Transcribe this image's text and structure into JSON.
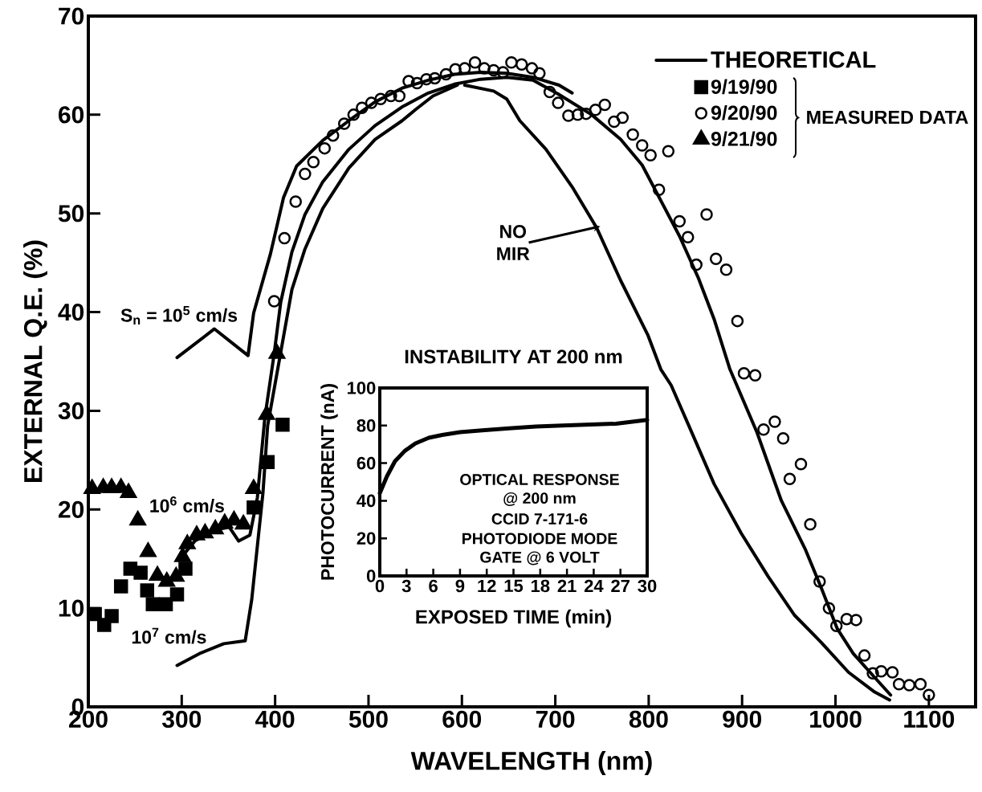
{
  "chart_data": [
    {
      "type": "line",
      "xlabel": "WAVELENGTH (nm)",
      "ylabel": "EXTERNAL Q.E. (%)",
      "xlim": [
        200,
        1150
      ],
      "ylim": [
        0,
        70
      ],
      "xticks": [
        200,
        300,
        400,
        500,
        600,
        700,
        800,
        900,
        1000,
        1100
      ],
      "yticks": [
        0,
        10,
        20,
        30,
        40,
        50,
        60,
        70
      ],
      "legend": "top right",
      "series": [
        {
          "name": "THEORETICAL",
          "type": "line",
          "color": "#000000",
          "x": [
            295,
            335,
            371,
            377,
            395,
            409,
            423,
            451,
            479,
            507,
            536,
            564,
            592,
            620,
            648,
            676,
            704,
            718
          ],
          "values": [
            35.4,
            38.3,
            35.6,
            39.9,
            45.9,
            51.6,
            54.8,
            57.4,
            59.4,
            61.3,
            62.7,
            63.5,
            64.1,
            64.3,
            64.2,
            63.8,
            63.0,
            62.2
          ]
        },
        {
          "type": "line",
          "color": "#000000",
          "x": [
            300,
            314,
            334,
            351,
            361,
            373,
            381,
            389,
            399,
            406,
            418,
            432,
            451,
            479,
            507,
            536,
            564,
            592,
            620,
            648,
            676,
            703,
            739,
            770,
            793,
            813,
            833,
            853,
            870,
            887,
            916,
            942,
            968,
            985,
            1002,
            1019,
            1037,
            1059
          ],
          "values": [
            15.2,
            16.8,
            17.9,
            18.2,
            16.8,
            17.4,
            21.2,
            29.3,
            35.8,
            41.0,
            46.1,
            49.9,
            53.2,
            56.5,
            58.9,
            60.8,
            62.2,
            63.1,
            63.6,
            63.8,
            63.5,
            62.1,
            60.0,
            57.5,
            54.9,
            51.3,
            47.7,
            43.5,
            39.3,
            34.2,
            27.8,
            20.9,
            15.9,
            12.0,
            7.9,
            5.4,
            3.5,
            1.2
          ]
        },
        {
          "type": "line",
          "color": "#000000",
          "x": [
            295,
            319,
            345,
            368,
            375,
            381,
            387,
            392,
            405,
            418,
            432,
            451,
            479,
            507,
            536,
            550,
            569,
            595
          ],
          "values": [
            4.2,
            5.4,
            6.4,
            6.7,
            10.9,
            16.3,
            21.7,
            28.5,
            35.4,
            42.3,
            46.4,
            50.5,
            54.6,
            57.5,
            59.4,
            60.5,
            61.9,
            63.0
          ]
        },
        {
          "type": "line",
          "color": "#000000",
          "x": [
            603,
            634,
            648,
            662,
            690,
            718,
            744,
            770,
            799,
            813,
            824,
            842,
            870,
            899,
            928,
            956,
            985,
            1014,
            1042,
            1058
          ],
          "values": [
            63.0,
            62.4,
            61.6,
            59.4,
            56.5,
            52.7,
            48.6,
            43.2,
            37.7,
            34.2,
            32.6,
            28.7,
            22.6,
            17.6,
            13.2,
            9.3,
            6.5,
            3.5,
            1.5,
            0.7
          ]
        },
        {
          "name": "9/19/90",
          "type": "scatter",
          "marker": "square",
          "color": "#000000",
          "x": [
            207,
            217,
            225,
            235,
            245,
            256,
            263,
            269,
            283,
            295,
            304,
            377,
            392,
            408
          ],
          "values": [
            9.4,
            8.3,
            9.2,
            12.2,
            14.0,
            13.6,
            11.8,
            10.4,
            10.4,
            11.4,
            14.0,
            20.2,
            24.8,
            28.6
          ]
        },
        {
          "name": "9/20/90",
          "type": "scatter",
          "marker": "circle",
          "color": "#000000",
          "x": [
            399,
            410,
            422,
            432,
            441,
            453,
            462,
            474,
            484,
            493,
            503,
            513,
            524,
            533,
            543,
            552,
            562,
            571,
            583,
            593,
            603,
            614,
            624,
            634,
            644,
            653,
            664,
            675,
            683,
            694,
            703,
            714,
            724,
            733,
            743,
            753,
            763,
            772,
            783,
            793,
            802,
            811,
            821,
            833,
            842,
            851,
            862,
            872,
            883,
            895,
            902,
            914,
            923,
            935,
            944,
            951,
            963,
            973,
            983,
            993,
            1001,
            1012,
            1022,
            1031,
            1040,
            1049,
            1061,
            1068,
            1079,
            1091,
            1100
          ],
          "values": [
            41.1,
            47.5,
            51.2,
            54.0,
            55.2,
            56.6,
            57.9,
            59.1,
            60.0,
            60.7,
            61.2,
            61.6,
            61.9,
            61.9,
            63.4,
            63.2,
            63.6,
            63.7,
            64.1,
            64.6,
            64.7,
            65.3,
            64.7,
            64.5,
            64.3,
            65.3,
            65.1,
            64.7,
            64.2,
            62.3,
            61.2,
            59.9,
            60.0,
            60.1,
            60.5,
            61.0,
            59.3,
            59.7,
            58.0,
            56.9,
            55.9,
            52.4,
            56.3,
            49.2,
            47.6,
            44.8,
            49.9,
            45.4,
            44.3,
            39.1,
            33.8,
            33.6,
            28.1,
            28.9,
            27.2,
            23.1,
            24.6,
            18.5,
            12.7,
            10.0,
            8.2,
            8.9,
            8.8,
            5.2,
            3.4,
            3.6,
            3.5,
            2.3,
            2.2,
            2.3,
            1.2
          ]
        },
        {
          "name": "9/21/90",
          "type": "scatter",
          "marker": "triangle",
          "color": "#000000",
          "x": [
            204,
            216,
            225,
            235,
            243,
            253,
            264,
            274,
            284,
            294,
            301,
            306,
            316,
            325,
            336,
            346,
            356,
            366,
            377,
            391,
            402
          ],
          "values": [
            22.1,
            22.2,
            22.2,
            22.2,
            21.7,
            18.9,
            15.7,
            13.3,
            12.7,
            13.2,
            15.2,
            16.5,
            17.4,
            17.6,
            18.0,
            18.6,
            18.9,
            18.5,
            22.1,
            29.6,
            35.8
          ]
        }
      ],
      "annotations": [
        {
          "text": "S$_{n}$ = 10$^{5}$ cm/s",
          "x": 335,
          "y": 38.3
        },
        {
          "text": "10$^{6}$ cm/s",
          "x": 334,
          "y": 17.9
        },
        {
          "text": "10$^{7}$ cm/s",
          "x": 319,
          "y": 5.4
        },
        {
          "text": "NO MIR",
          "x": 744,
          "y": 48.6
        },
        "MEASURED DATA"
      ]
    },
    {
      "type": "line",
      "title": "INSTABILITY AT 200 nm",
      "xlabel": "EXPOSED TIME (min)",
      "ylabel": "PHOTOCURRENT (nA)",
      "xlim": [
        0,
        30
      ],
      "ylim": [
        0,
        100
      ],
      "xticks": [
        0,
        3,
        6,
        9,
        12,
        15,
        18,
        21,
        24,
        27,
        30
      ],
      "yticks": [
        0,
        20,
        40,
        60,
        80,
        100
      ],
      "x": [
        0,
        0.8,
        1.7,
        2.8,
        4,
        5.5,
        7,
        9,
        11.5,
        14.5,
        17.5,
        20.5,
        23.5,
        26.5,
        30
      ],
      "values": [
        44,
        53,
        61,
        66.5,
        70.5,
        73.5,
        75,
        76.5,
        77.5,
        78.5,
        79.5,
        80,
        80.5,
        81,
        83
      ],
      "color": "#000000",
      "annotations": [
        "OPTICAL RESPONSE",
        "@ 200 nm",
        "CCID 7-171-6",
        "PHOTODIODE MODE",
        "GATE @ 6 VOLT"
      ]
    }
  ]
}
